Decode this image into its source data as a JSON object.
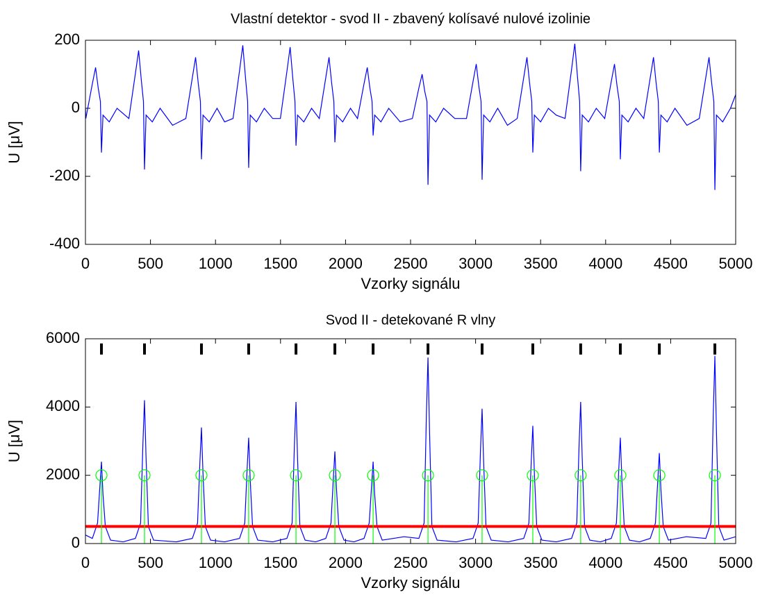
{
  "chart_data": [
    {
      "type": "line",
      "title": "Vlastní detektor - svod II - zbavený kolísavé nulové izolinie",
      "x_label": "Vzorky signálu",
      "y_label": "U [μV]",
      "xlim": [
        0,
        5000
      ],
      "xticks": [
        0,
        500,
        1000,
        1500,
        2000,
        2500,
        3000,
        3500,
        4000,
        4500,
        5000
      ],
      "ylim": [
        -400,
        200
      ],
      "yticks": [
        -400,
        -200,
        0,
        200
      ],
      "series": [
        {
          "mode": "line",
          "color": "#0000ff",
          "x": [
            0,
            3,
            53,
            78,
            98,
            115,
            123,
            135,
            183,
            243,
            334,
            384,
            409,
            429,
            446,
            454,
            466,
            514,
            574,
            670,
            772,
            822,
            847,
            867,
            884,
            892,
            904,
            952,
            1012,
            1070,
            1135,
            1185,
            1210,
            1230,
            1247,
            1255,
            1267,
            1315,
            1375,
            1440,
            1499,
            1549,
            1574,
            1594,
            1611,
            1619,
            1631,
            1679,
            1739,
            1798,
            1848,
            1873,
            1893,
            1910,
            1918,
            1930,
            1978,
            2038,
            2092,
            2142,
            2167,
            2187,
            2204,
            2212,
            2224,
            2272,
            2332,
            2420,
            2514,
            2564,
            2589,
            2609,
            2626,
            2634,
            2646,
            2694,
            2754,
            2840,
            2930,
            2980,
            3005,
            3025,
            3042,
            3050,
            3062,
            3110,
            3170,
            3245,
            3320,
            3370,
            3395,
            3415,
            3432,
            3440,
            3452,
            3500,
            3560,
            3620,
            3688,
            3738,
            3763,
            3783,
            3800,
            3808,
            3820,
            3868,
            3928,
            3993,
            4043,
            4068,
            4088,
            4105,
            4113,
            4125,
            4173,
            4233,
            4293,
            4343,
            4368,
            4388,
            4405,
            4413,
            4425,
            4473,
            4533,
            4625,
            4720,
            4770,
            4795,
            4815,
            4832,
            4840,
            4852,
            4900,
            4960,
            5000
          ],
          "values": [
            0,
            -30,
            72,
            120,
            60,
            20,
            -130,
            -20,
            -40,
            0,
            -30,
            102,
            170,
            85,
            20,
            -180,
            -20,
            -40,
            0,
            -50,
            -30,
            90,
            150,
            75,
            20,
            -150,
            -20,
            -40,
            0,
            -40,
            -30,
            111,
            185,
            93,
            20,
            -175,
            -20,
            -40,
            0,
            -30,
            -30,
            108,
            180,
            90,
            20,
            -110,
            -20,
            -40,
            0,
            -30,
            90,
            150,
            75,
            20,
            -100,
            -20,
            -40,
            0,
            -30,
            72,
            120,
            60,
            20,
            -80,
            -20,
            -40,
            0,
            -40,
            -30,
            60,
            100,
            50,
            20,
            -225,
            -20,
            -40,
            0,
            -30,
            -30,
            78,
            130,
            65,
            20,
            -210,
            -20,
            -40,
            0,
            -50,
            -30,
            90,
            150,
            75,
            20,
            -130,
            -20,
            -40,
            0,
            -20,
            -30,
            114,
            190,
            95,
            20,
            -185,
            -20,
            -40,
            0,
            -30,
            78,
            130,
            65,
            20,
            -150,
            -20,
            -40,
            0,
            -30,
            90,
            150,
            75,
            20,
            -130,
            -20,
            -40,
            0,
            -50,
            -30,
            90,
            150,
            75,
            20,
            -240,
            -20,
            -40,
            0,
            40
          ]
        }
      ]
    },
    {
      "type": "line",
      "title": "Svod II - detekované R vlny",
      "x_label": "Vzorky signálu",
      "y_label": "U [μV]",
      "xlim": [
        0,
        5000
      ],
      "xticks": [
        0,
        500,
        1000,
        1500,
        2000,
        2500,
        3000,
        3500,
        4000,
        4500,
        5000
      ],
      "ylim": [
        0,
        6000
      ],
      "yticks": [
        0,
        2000,
        4000,
        6000
      ],
      "hlines": [
        {
          "value": 500,
          "color": "#ff0000"
        }
      ],
      "series": [
        {
          "mode": "line",
          "color": "#0000ff",
          "x": [
            0,
            53,
            93,
            111,
            123,
            135,
            153,
            193,
            290,
            384,
            424,
            442,
            454,
            466,
            484,
            524,
            700,
            822,
            862,
            880,
            892,
            904,
            922,
            962,
            1070,
            1185,
            1225,
            1243,
            1255,
            1267,
            1285,
            1325,
            1440,
            1549,
            1589,
            1607,
            1619,
            1631,
            1649,
            1689,
            1770,
            1848,
            1888,
            1906,
            1918,
            1930,
            1948,
            1988,
            2065,
            2142,
            2182,
            2200,
            2212,
            2224,
            2242,
            2282,
            2450,
            2564,
            2604,
            2622,
            2634,
            2646,
            2664,
            2704,
            2850,
            2980,
            3020,
            3038,
            3050,
            3062,
            3080,
            3120,
            3250,
            3370,
            3410,
            3428,
            3440,
            3452,
            3470,
            3510,
            3620,
            3738,
            3778,
            3796,
            3808,
            3820,
            3838,
            3878,
            3960,
            4043,
            4083,
            4101,
            4113,
            4125,
            4143,
            4183,
            4260,
            4343,
            4383,
            4401,
            4413,
            4425,
            4443,
            4483,
            4620,
            4770,
            4810,
            4828,
            4840,
            4852,
            4870,
            4910,
            5000
          ],
          "values": [
            250,
            150,
            600,
            1680,
            2400,
            1440,
            500,
            100,
            50,
            150,
            600,
            2940,
            4200,
            2520,
            500,
            100,
            50,
            150,
            600,
            2380,
            3400,
            2040,
            500,
            100,
            50,
            150,
            600,
            2170,
            3100,
            1860,
            500,
            100,
            50,
            150,
            600,
            2905,
            4150,
            2490,
            500,
            100,
            50,
            150,
            600,
            1890,
            2700,
            1620,
            500,
            100,
            50,
            150,
            600,
            1680,
            2400,
            1440,
            500,
            100,
            200,
            150,
            600,
            3815,
            5450,
            3270,
            500,
            100,
            50,
            150,
            600,
            2765,
            3950,
            2370,
            500,
            100,
            50,
            150,
            600,
            2415,
            3450,
            2070,
            500,
            100,
            50,
            150,
            600,
            2905,
            4150,
            2490,
            500,
            100,
            50,
            150,
            600,
            2170,
            3100,
            1860,
            500,
            100,
            50,
            150,
            600,
            1855,
            2650,
            1590,
            500,
            100,
            200,
            150,
            600,
            3850,
            5500,
            3300,
            500,
            100,
            200
          ]
        },
        {
          "mode": "stem-circle",
          "color": "#00ff00",
          "x": [
            123,
            454,
            892,
            1255,
            1619,
            1918,
            2212,
            2634,
            3050,
            3440,
            3808,
            4113,
            4413,
            4840
          ],
          "values": [
            2000,
            2000,
            2000,
            2000,
            2000,
            2000,
            2000,
            2000,
            2000,
            2000,
            2000,
            2000,
            2000,
            2000
          ]
        },
        {
          "mode": "bar-marker",
          "color": "#000000",
          "x": [
            123,
            454,
            892,
            1255,
            1619,
            1918,
            2212,
            2634,
            3050,
            3440,
            3808,
            4113,
            4413,
            4840
          ],
          "values": [
            5700,
            5700,
            5700,
            5700,
            5700,
            5700,
            5700,
            5700,
            5700,
            5700,
            5700,
            5700,
            5700,
            5700
          ]
        }
      ]
    }
  ]
}
